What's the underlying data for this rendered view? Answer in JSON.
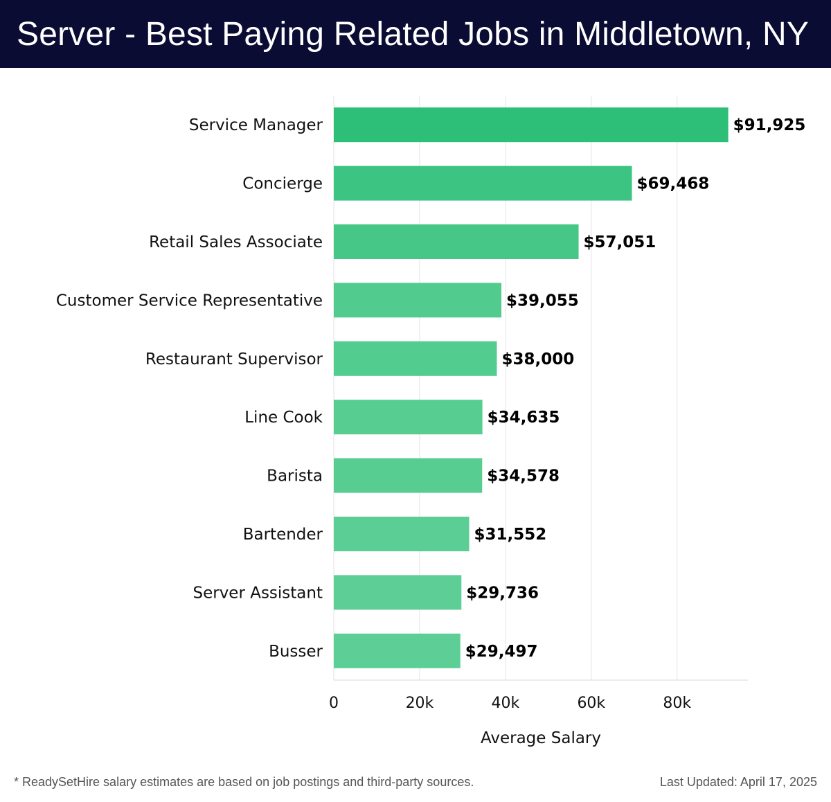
{
  "header": {
    "title": "Server - Best Paying Related Jobs in Middletown, NY"
  },
  "chart_data": {
    "type": "bar",
    "orientation": "horizontal",
    "categories": [
      "Service Manager",
      "Concierge",
      "Retail Sales Associate",
      "Customer Service Representative",
      "Restaurant Supervisor",
      "Line Cook",
      "Barista",
      "Bartender",
      "Server Assistant",
      "Busser"
    ],
    "values": [
      91925,
      69468,
      57051,
      39055,
      38000,
      34635,
      34578,
      31552,
      29736,
      29497
    ],
    "value_labels": [
      "$91,925",
      "$69,468",
      "$57,051",
      "$39,055",
      "$38,000",
      "$34,635",
      "$34,578",
      "$31,552",
      "$29,736",
      "$29,497"
    ],
    "xlabel": "Average Salary",
    "ylabel": "",
    "xlim": [
      0,
      96500
    ],
    "xticks": [
      0,
      20000,
      40000,
      60000,
      80000
    ],
    "xtick_labels": [
      "0",
      "20k",
      "40k",
      "60k",
      "80k"
    ],
    "grid": true,
    "bar_colors": [
      "#2dbf78",
      "#3cc482",
      "#46c788",
      "#52cb8f",
      "#53cc90",
      "#57cd92",
      "#57cd92",
      "#5ace94",
      "#5dcf96",
      "#5dcf96"
    ]
  },
  "footer": {
    "note": "* ReadySetHire salary estimates are based on job postings and third-party sources.",
    "updated": "Last Updated: April 17, 2025"
  }
}
